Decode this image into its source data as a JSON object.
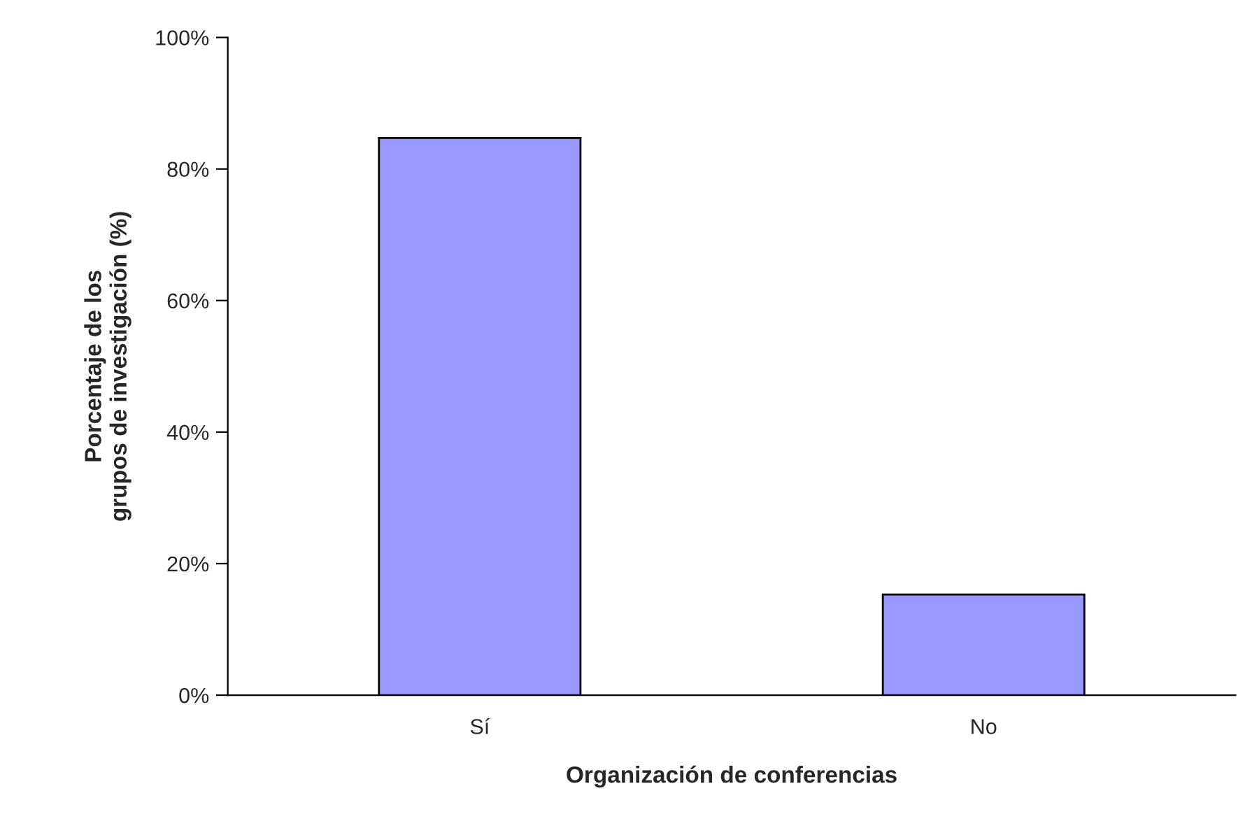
{
  "chart_data": {
    "type": "bar",
    "xlabel": "Organización de conferencias",
    "ylabel": "Porcentaje de los\ngrupos de investigación (%)",
    "categories": [
      "Sí",
      "No"
    ],
    "values": [
      84.7,
      15.3
    ],
    "color": "#9999ff",
    "ylim": [
      0,
      100
    ],
    "yticks": [
      {
        "value": 0,
        "label": "0%"
      },
      {
        "value": 20,
        "label": "20%"
      },
      {
        "value": 40,
        "label": "40%"
      },
      {
        "value": 60,
        "label": "60%"
      },
      {
        "value": 80,
        "label": "80%"
      },
      {
        "value": 100,
        "label": "100%"
      }
    ],
    "grid": false,
    "legend": false
  }
}
